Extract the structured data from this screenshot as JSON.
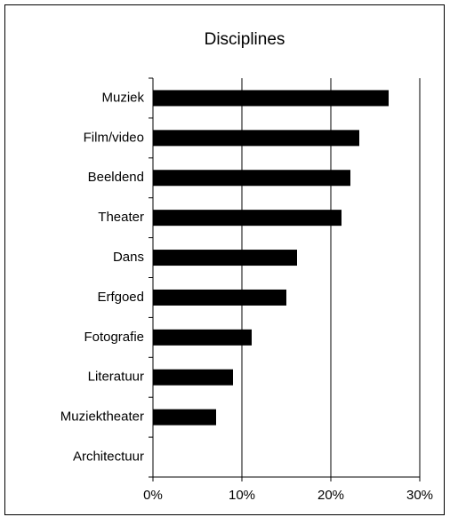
{
  "chart_data": {
    "type": "barh",
    "title": "Disciplines",
    "categories": [
      "Muziek",
      "Film/video",
      "Beeldend",
      "Theater",
      "Dans",
      "Erfgoed",
      "Fotografie",
      "Literatuur",
      "Muziektheater",
      "Architectuur"
    ],
    "values": [
      26.5,
      23.2,
      22.2,
      21.2,
      16.2,
      15,
      11.1,
      9,
      7.1,
      0
    ],
    "color": "#000000",
    "xlim": [
      0,
      30
    ],
    "xticks": [
      {
        "value": 0,
        "label": "0%"
      },
      {
        "value": 10,
        "label": "10%"
      },
      {
        "value": 20,
        "label": "20%"
      },
      {
        "value": 30,
        "label": "30%"
      }
    ],
    "grid": true
  }
}
